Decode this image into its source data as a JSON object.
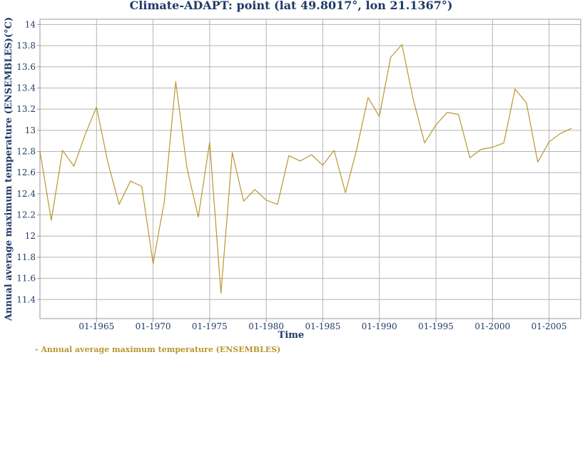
{
  "chart_data": {
    "type": "line",
    "title": "Climate-ADAPT: point (lat 49.8017°, lon 21.1367°)",
    "xlabel": "Time",
    "ylabel": "Annual average maximum temperature (ENSEMBLES)(°C)",
    "ylim": [
      11.22,
      14.05
    ],
    "xlim": [
      1960,
      2007.8
    ],
    "x_ticks": [
      1965,
      1970,
      1975,
      1980,
      1985,
      1990,
      1995,
      2000,
      2005
    ],
    "x_tick_labels": [
      "01-1965",
      "01-1970",
      "01-1975",
      "01-1980",
      "01-1985",
      "01-1990",
      "01-1995",
      "01-2000",
      "01-2005"
    ],
    "y_ticks": [
      11.4,
      11.6,
      11.8,
      12,
      12.2,
      12.4,
      12.6,
      12.8,
      13,
      13.2,
      13.4,
      13.6,
      13.8,
      14
    ],
    "y_tick_labels": [
      "11.4",
      "11.6",
      "11.8",
      "12",
      "12.2",
      "12.4",
      "12.6",
      "12.8",
      "13",
      "13.2",
      "13.4",
      "13.6",
      "13.8",
      "14"
    ],
    "grid": true,
    "legend_position": "bottom-left",
    "series": [
      {
        "name": "Annual average maximum temperature (ENSEMBLES)",
        "color": "#b8962e",
        "x": [
          1960,
          1961,
          1962,
          1963,
          1964,
          1965,
          1966,
          1967,
          1968,
          1969,
          1970,
          1971,
          1972,
          1973,
          1974,
          1975,
          1976,
          1977,
          1978,
          1979,
          1980,
          1981,
          1982,
          1983,
          1984,
          1985,
          1986,
          1987,
          1988,
          1989,
          1990,
          1991,
          1992,
          1993,
          1994,
          1995,
          1996,
          1997,
          1998,
          1999,
          2000,
          2001,
          2002,
          2003,
          2004,
          2005,
          2006,
          2007
        ],
        "y": [
          12.8,
          12.15,
          12.81,
          12.66,
          12.96,
          13.22,
          12.7,
          12.3,
          12.52,
          12.47,
          11.74,
          12.33,
          13.46,
          12.64,
          12.18,
          12.89,
          11.46,
          12.79,
          12.33,
          12.44,
          12.34,
          12.3,
          12.76,
          12.71,
          12.77,
          12.67,
          12.81,
          12.41,
          12.82,
          13.31,
          13.13,
          13.69,
          13.81,
          13.29,
          12.88,
          13.05,
          13.17,
          13.15,
          12.74,
          12.82,
          12.84,
          12.88,
          13.39,
          13.26,
          12.7,
          12.89,
          12.97,
          13.02
        ]
      }
    ]
  }
}
